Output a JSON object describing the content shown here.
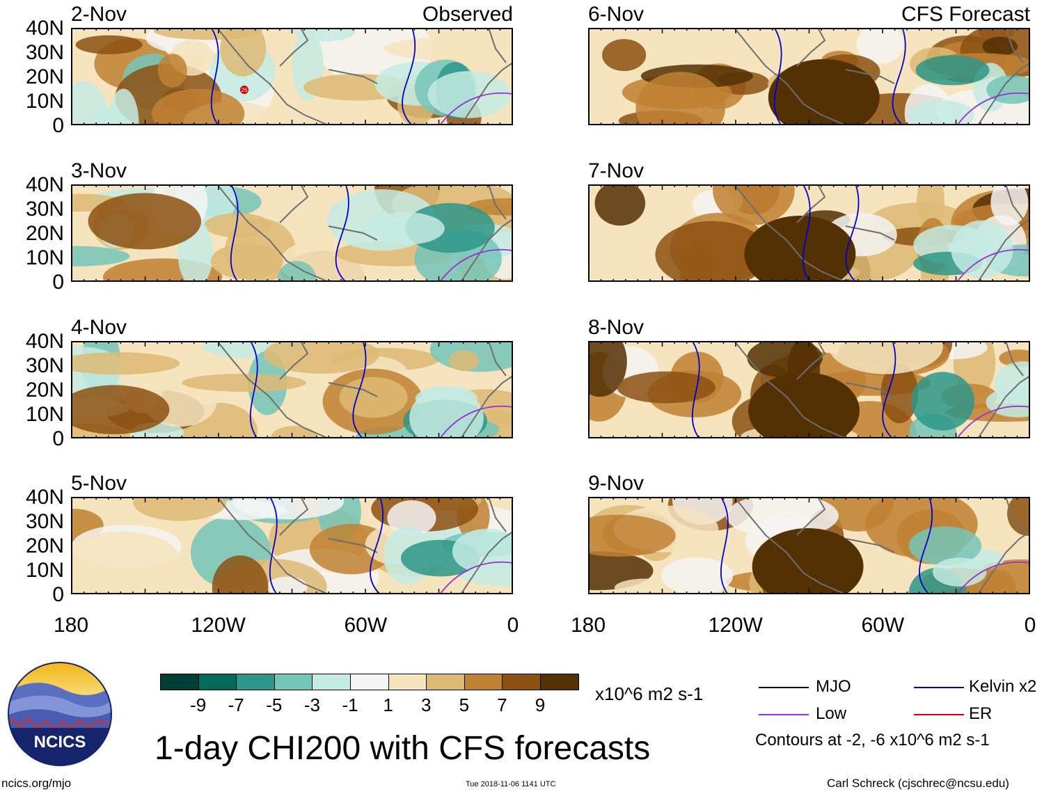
{
  "chart_data": {
    "type": "heatmap",
    "title": "1-day CHI200 with CFS forecasts",
    "units": "x10^6 m2 s-1",
    "colorbar": {
      "ticks": [
        "-9",
        "-7",
        "-5",
        "-3",
        "-1",
        "1",
        "3",
        "5",
        "7",
        "9"
      ],
      "colors": [
        "#003f36",
        "#046b5c",
        "#2e9688",
        "#74c6b8",
        "#c4ebe3",
        "#f5f5f5",
        "#f5e4be",
        "#ddba74",
        "#bf8132",
        "#8c5112",
        "#543005"
      ]
    },
    "x_ticks": [
      "180",
      "120W",
      "60W",
      "0"
    ],
    "y_ticks": [
      "40N",
      "30N",
      "20N",
      "10N",
      "0"
    ],
    "panels": [
      {
        "date": "2-Nov",
        "label": "Observed",
        "marker": "26"
      },
      {
        "date": "3-Nov",
        "label": ""
      },
      {
        "date": "4-Nov",
        "label": ""
      },
      {
        "date": "5-Nov",
        "label": ""
      },
      {
        "date": "6-Nov",
        "label": "CFS Forecast"
      },
      {
        "date": "7-Nov",
        "label": ""
      },
      {
        "date": "8-Nov",
        "label": ""
      },
      {
        "date": "9-Nov",
        "label": ""
      }
    ],
    "legend": [
      {
        "name": "MJO",
        "color": "#000000"
      },
      {
        "name": "Kelvin x2",
        "color": "#0000d0"
      },
      {
        "name": "Low",
        "color": "#9b30d0"
      },
      {
        "name": "ER",
        "color": "#d00000"
      }
    ],
    "contour_note": "Contours at -2, -6 x10^6 m2 s-1"
  },
  "footer": {
    "logo_text": "NCICS",
    "url": "ncics.org/mjo",
    "timestamp": "Tue 2018-11-06 1141 UTC",
    "author": "Carl Schreck (cjschrec@ncsu.edu)"
  }
}
